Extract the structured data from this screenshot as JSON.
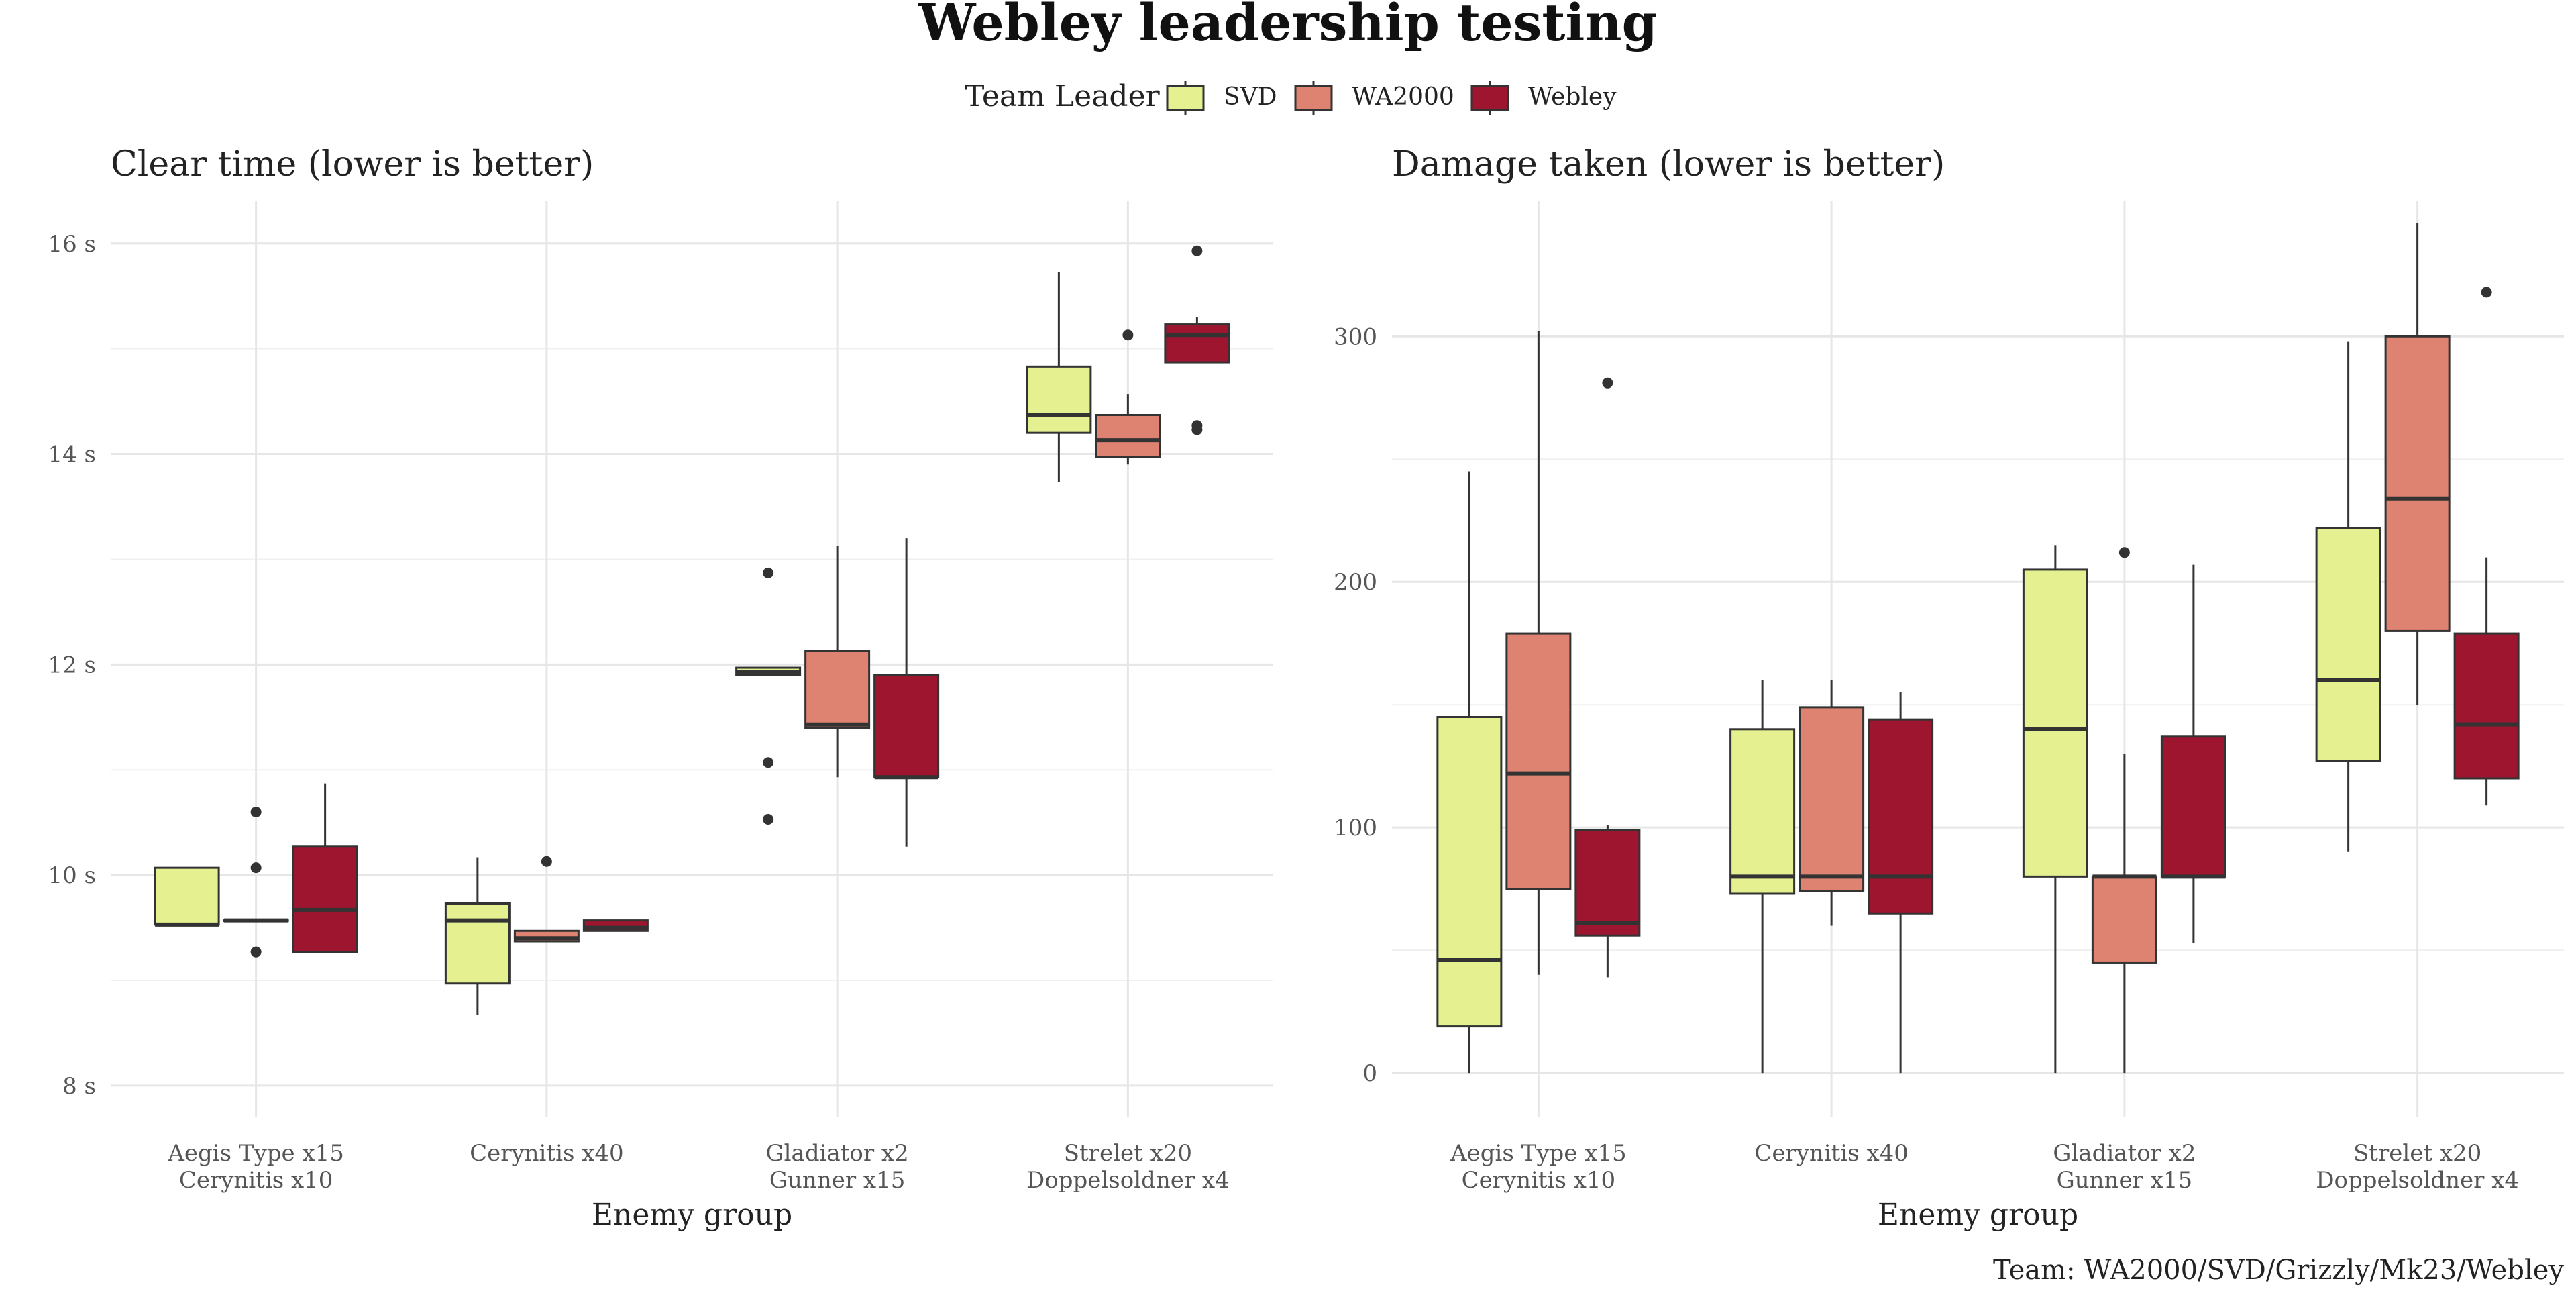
{
  "title": "Webley leadership testing",
  "legend": {
    "title": "Team Leader",
    "position": "top",
    "items": [
      {
        "label": "SVD",
        "color": "#e5f190"
      },
      {
        "label": "WA2000",
        "color": "#de8371"
      },
      {
        "label": "Webley",
        "color": "#9e1530"
      }
    ]
  },
  "caption": "Team: WA2000/SVD/Grizzly/Mk23/Webley",
  "chart_data": [
    {
      "type": "boxplot",
      "subtitle": "Clear time (lower is better)",
      "xlabel": "Enemy group",
      "ylabel": "",
      "ylim": [
        7.7,
        16.4
      ],
      "yticks": [
        8,
        10,
        12,
        14,
        16
      ],
      "ytick_labels": [
        "8 s",
        "10 s",
        "12 s",
        "14 s",
        "16 s"
      ],
      "grid": true,
      "categories": [
        {
          "lines": [
            "Aegis Type x15",
            "Cerynitis x10"
          ]
        },
        {
          "lines": [
            "Cerynitis x40"
          ]
        },
        {
          "lines": [
            "Gladiator x2",
            "Gunner x15"
          ]
        },
        {
          "lines": [
            "Strelet x20",
            "Doppelsoldner x4"
          ]
        }
      ],
      "series": [
        {
          "name": "SVD",
          "boxes": [
            {
              "min": 9.53,
              "q1": 9.53,
              "median": 9.53,
              "q3": 10.07,
              "max": 10.07,
              "outliers": []
            },
            {
              "min": 8.67,
              "q1": 8.97,
              "median": 9.57,
              "q3": 9.73,
              "max": 10.17,
              "outliers": []
            },
            {
              "min": 11.9,
              "q1": 11.9,
              "median": 11.93,
              "q3": 11.97,
              "max": 11.97,
              "outliers": [
                12.87,
                11.07,
                10.53
              ]
            },
            {
              "min": 13.73,
              "q1": 14.2,
              "median": 14.37,
              "q3": 14.83,
              "max": 15.73,
              "outliers": []
            }
          ]
        },
        {
          "name": "WA2000",
          "boxes": [
            {
              "min": 9.57,
              "q1": 9.57,
              "median": 9.57,
              "q3": 9.57,
              "max": 9.57,
              "outliers": [
                10.6,
                10.07,
                9.27
              ]
            },
            {
              "min": 9.37,
              "q1": 9.37,
              "median": 9.4,
              "q3": 9.47,
              "max": 9.47,
              "outliers": [
                10.13
              ]
            },
            {
              "min": 10.93,
              "q1": 11.4,
              "median": 11.43,
              "q3": 12.13,
              "max": 13.13,
              "outliers": []
            },
            {
              "min": 13.9,
              "q1": 13.97,
              "median": 14.13,
              "q3": 14.37,
              "max": 14.57,
              "outliers": [
                15.13
              ]
            }
          ]
        },
        {
          "name": "Webley",
          "boxes": [
            {
              "min": 9.27,
              "q1": 9.27,
              "median": 9.67,
              "q3": 10.27,
              "max": 10.87,
              "outliers": []
            },
            {
              "min": 9.47,
              "q1": 9.47,
              "median": 9.5,
              "q3": 9.57,
              "max": 9.57,
              "outliers": []
            },
            {
              "min": 10.27,
              "q1": 10.93,
              "median": 10.93,
              "q3": 11.9,
              "max": 13.2,
              "outliers": []
            },
            {
              "min": 14.87,
              "q1": 14.87,
              "median": 15.13,
              "q3": 15.23,
              "max": 15.3,
              "outliers": [
                15.93,
                14.27,
                14.23
              ]
            }
          ]
        }
      ]
    },
    {
      "type": "boxplot",
      "subtitle": "Damage taken (lower is better)",
      "xlabel": "Enemy group",
      "ylabel": "",
      "ylim": [
        -18,
        355
      ],
      "yticks": [
        0,
        100,
        200,
        300
      ],
      "ytick_labels": [
        "0",
        "100",
        "200",
        "300"
      ],
      "grid": true,
      "categories": [
        {
          "lines": [
            "Aegis Type x15",
            "Cerynitis x10"
          ]
        },
        {
          "lines": [
            "Cerynitis x40"
          ]
        },
        {
          "lines": [
            "Gladiator x2",
            "Gunner x15"
          ]
        },
        {
          "lines": [
            "Strelet x20",
            "Doppelsoldner x4"
          ]
        }
      ],
      "series": [
        {
          "name": "SVD",
          "boxes": [
            {
              "min": 0,
              "q1": 19,
              "median": 46,
              "q3": 145,
              "max": 245,
              "outliers": []
            },
            {
              "min": 0,
              "q1": 73,
              "median": 80,
              "q3": 140,
              "max": 160,
              "outliers": []
            },
            {
              "min": 0,
              "q1": 80,
              "median": 140,
              "q3": 205,
              "max": 215,
              "outliers": []
            },
            {
              "min": 90,
              "q1": 127,
              "median": 160,
              "q3": 222,
              "max": 298,
              "outliers": []
            }
          ]
        },
        {
          "name": "WA2000",
          "boxes": [
            {
              "min": 40,
              "q1": 75,
              "median": 122,
              "q3": 179,
              "max": 302,
              "outliers": []
            },
            {
              "min": 60,
              "q1": 74,
              "median": 80,
              "q3": 149,
              "max": 160,
              "outliers": []
            },
            {
              "min": 0,
              "q1": 45,
              "median": 80,
              "q3": 80,
              "max": 130,
              "outliers": [
                212
              ]
            },
            {
              "min": 150,
              "q1": 180,
              "median": 234,
              "q3": 300,
              "max": 346,
              "outliers": []
            }
          ]
        },
        {
          "name": "Webley",
          "boxes": [
            {
              "min": 39,
              "q1": 56,
              "median": 61,
              "q3": 99,
              "max": 101,
              "outliers": [
                281
              ]
            },
            {
              "min": 0,
              "q1": 65,
              "median": 80,
              "q3": 144,
              "max": 155,
              "outliers": []
            },
            {
              "min": 53,
              "q1": 80,
              "median": 80,
              "q3": 137,
              "max": 207,
              "outliers": []
            },
            {
              "min": 109,
              "q1": 120,
              "median": 142,
              "q3": 179,
              "max": 210,
              "outliers": [
                318
              ]
            }
          ]
        }
      ]
    }
  ]
}
